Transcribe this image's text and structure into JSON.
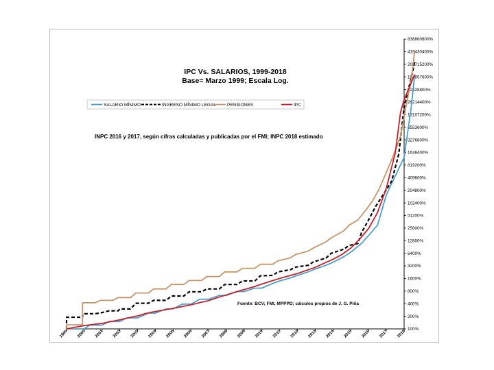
{
  "chart_data": {
    "type": "line",
    "title": "IPC Vs. SALARIOS, 1999-2018",
    "subtitle": "Base= Marzo 1999; Escala Log.",
    "note": "INPC 2016 y 2017, según cifras calculadas y publicadas por el FMI; INPC 2018 estimado",
    "source": "Fuente: BCV; FMI, MPPPD; cálculos propios de J. G. Piña",
    "xlabel": "",
    "ylabel": "",
    "y_scale": "log2",
    "ylim": [
      100,
      838860800
    ],
    "xlim": [
      1999,
      2018
    ],
    "y_ticks": [
      "100%",
      "200%",
      "400%",
      "800%",
      "1600%",
      "3200%",
      "6400%",
      "12800%",
      "25600%",
      "51200%",
      "102400%",
      "204800%",
      "409600%",
      "819200%",
      "1638400%",
      "3276800%",
      "6553600%",
      "13107200%",
      "26214400%",
      "52428800%",
      "104857600%",
      "209715200%",
      "419430400%",
      "838860800%"
    ],
    "x_ticks": [
      "1999",
      "2000",
      "2001",
      "2002",
      "2003",
      "2004",
      "2005",
      "2006",
      "2007",
      "2008",
      "2009",
      "2010",
      "2011",
      "2012",
      "2013",
      "2014",
      "2015",
      "2016",
      "2017",
      "2018"
    ],
    "grid": false,
    "legend_position": "top-left",
    "series": [
      {
        "name": "SALARIO MÍNIMO",
        "color": "#4a9fce",
        "style": "solid",
        "points": [
          [
            1999.0,
            100
          ],
          [
            2000.0,
            100
          ],
          [
            2000.3,
            123
          ],
          [
            2000.6,
            123
          ],
          [
            2001.0,
            123
          ],
          [
            2001.4,
            150
          ],
          [
            2002.0,
            150
          ],
          [
            2002.4,
            183
          ],
          [
            2003.0,
            183
          ],
          [
            2003.6,
            238
          ],
          [
            2004.0,
            238
          ],
          [
            2004.6,
            300
          ],
          [
            2005.0,
            300
          ],
          [
            2005.5,
            390
          ],
          [
            2006.0,
            390
          ],
          [
            2006.5,
            512
          ],
          [
            2007.0,
            512
          ],
          [
            2007.6,
            630
          ],
          [
            2008.0,
            630
          ],
          [
            2008.6,
            780
          ],
          [
            2009.0,
            780
          ],
          [
            2009.6,
            940
          ],
          [
            2010.0,
            940
          ],
          [
            2010.6,
            1220
          ],
          [
            2011.0,
            1400
          ],
          [
            2011.6,
            1650
          ],
          [
            2012.0,
            1900
          ],
          [
            2012.6,
            2300
          ],
          [
            2013.0,
            2700
          ],
          [
            2013.6,
            3300
          ],
          [
            2014.0,
            3900
          ],
          [
            2014.6,
            5300
          ],
          [
            2015.0,
            6800
          ],
          [
            2015.6,
            11000
          ],
          [
            2016.0,
            17000
          ],
          [
            2016.5,
            30000
          ],
          [
            2017.0,
            160000
          ],
          [
            2017.5,
            450000
          ],
          [
            2018.0,
            1250000
          ],
          [
            2018.4,
            20000000
          ],
          [
            2018.6,
            120000000
          ]
        ]
      },
      {
        "name": "INGRESO MÍNIMO LEGAL",
        "color": "#000000",
        "style": "dashed",
        "points": [
          [
            1999.0,
            100
          ],
          [
            1999.0,
            190
          ],
          [
            1999.9,
            190
          ],
          [
            1999.9,
            230
          ],
          [
            2000.6,
            230
          ],
          [
            2000.9,
            240
          ],
          [
            2001.4,
            270
          ],
          [
            2001.9,
            270
          ],
          [
            2002.0,
            300
          ],
          [
            2002.6,
            300
          ],
          [
            2002.9,
            410
          ],
          [
            2003.6,
            410
          ],
          [
            2003.9,
            480
          ],
          [
            2004.6,
            480
          ],
          [
            2004.9,
            610
          ],
          [
            2005.6,
            610
          ],
          [
            2005.9,
            770
          ],
          [
            2006.6,
            770
          ],
          [
            2006.9,
            900
          ],
          [
            2007.6,
            900
          ],
          [
            2007.9,
            1150
          ],
          [
            2008.6,
            1150
          ],
          [
            2008.9,
            1400
          ],
          [
            2009.6,
            1400
          ],
          [
            2009.9,
            1850
          ],
          [
            2010.6,
            1900
          ],
          [
            2010.9,
            2300
          ],
          [
            2011.6,
            2600
          ],
          [
            2011.9,
            3000
          ],
          [
            2012.6,
            3300
          ],
          [
            2012.9,
            4000
          ],
          [
            2013.6,
            4900
          ],
          [
            2013.9,
            6400
          ],
          [
            2014.6,
            8000
          ],
          [
            2014.9,
            9800
          ],
          [
            2015.4,
            11000
          ],
          [
            2015.6,
            20000
          ],
          [
            2016.0,
            40000
          ],
          [
            2016.4,
            85000
          ],
          [
            2016.9,
            180000
          ],
          [
            2017.3,
            340000
          ],
          [
            2017.7,
            1500000
          ],
          [
            2018.0,
            20000000
          ],
          [
            2018.4,
            100000000
          ],
          [
            2018.6,
            240000000
          ]
        ]
      },
      {
        "name": "PENSIONES",
        "color": "#c79466",
        "style": "solid",
        "points": [
          [
            1999.0,
            100
          ],
          [
            1999.0,
            125
          ],
          [
            1999.9,
            125
          ],
          [
            1999.9,
            420
          ],
          [
            2000.6,
            420
          ],
          [
            2000.9,
            480
          ],
          [
            2001.6,
            480
          ],
          [
            2001.9,
            560
          ],
          [
            2002.6,
            560
          ],
          [
            2002.9,
            720
          ],
          [
            2003.6,
            720
          ],
          [
            2003.9,
            900
          ],
          [
            2004.6,
            900
          ],
          [
            2004.9,
            1150
          ],
          [
            2005.6,
            1150
          ],
          [
            2005.9,
            1430
          ],
          [
            2006.6,
            1430
          ],
          [
            2006.9,
            1780
          ],
          [
            2007.6,
            1780
          ],
          [
            2007.9,
            2300
          ],
          [
            2008.6,
            2300
          ],
          [
            2008.9,
            2800
          ],
          [
            2009.6,
            2800
          ],
          [
            2009.9,
            3500
          ],
          [
            2010.6,
            3500
          ],
          [
            2010.9,
            4200
          ],
          [
            2011.6,
            5000
          ],
          [
            2011.9,
            6000
          ],
          [
            2012.6,
            7200
          ],
          [
            2012.9,
            8600
          ],
          [
            2013.6,
            12000
          ],
          [
            2013.9,
            15000
          ],
          [
            2014.6,
            22000
          ],
          [
            2014.9,
            30000
          ],
          [
            2015.4,
            40000
          ],
          [
            2015.8,
            65000
          ],
          [
            2016.2,
            110000
          ],
          [
            2016.6,
            220000
          ],
          [
            2017.0,
            550000
          ],
          [
            2017.4,
            1400000
          ],
          [
            2017.8,
            4000000
          ],
          [
            2018.1,
            20000000
          ],
          [
            2018.4,
            90000000
          ],
          [
            2018.6,
            450000000
          ]
        ]
      },
      {
        "name": "IPC",
        "color": "#c8202a",
        "style": "solid",
        "points": [
          [
            1999.0,
            100
          ],
          [
            1999.5,
            110
          ],
          [
            2000.0,
            120
          ],
          [
            2000.5,
            128
          ],
          [
            2001.0,
            135
          ],
          [
            2001.5,
            150
          ],
          [
            2002.0,
            165
          ],
          [
            2002.5,
            185
          ],
          [
            2003.0,
            205
          ],
          [
            2003.5,
            235
          ],
          [
            2004.0,
            260
          ],
          [
            2004.5,
            285
          ],
          [
            2005.0,
            310
          ],
          [
            2005.5,
            340
          ],
          [
            2006.0,
            375
          ],
          [
            2006.5,
            425
          ],
          [
            2007.0,
            475
          ],
          [
            2007.5,
            560
          ],
          [
            2008.0,
            650
          ],
          [
            2008.5,
            760
          ],
          [
            2009.0,
            870
          ],
          [
            2009.5,
            1000
          ],
          [
            2010.0,
            1180
          ],
          [
            2010.5,
            1380
          ],
          [
            2011.0,
            1600
          ],
          [
            2011.5,
            1850
          ],
          [
            2012.0,
            2100
          ],
          [
            2012.5,
            2500
          ],
          [
            2013.0,
            2950
          ],
          [
            2013.5,
            3700
          ],
          [
            2014.0,
            4600
          ],
          [
            2014.5,
            6000
          ],
          [
            2015.0,
            8500
          ],
          [
            2015.5,
            14000
          ],
          [
            2016.0,
            25000
          ],
          [
            2016.5,
            60000
          ],
          [
            2017.0,
            230000
          ],
          [
            2017.5,
            1600000
          ],
          [
            2017.8,
            15000000
          ],
          [
            2018.0,
            30000000
          ],
          [
            2018.3,
            60000000
          ],
          [
            2018.6,
            120000000
          ]
        ]
      }
    ]
  }
}
